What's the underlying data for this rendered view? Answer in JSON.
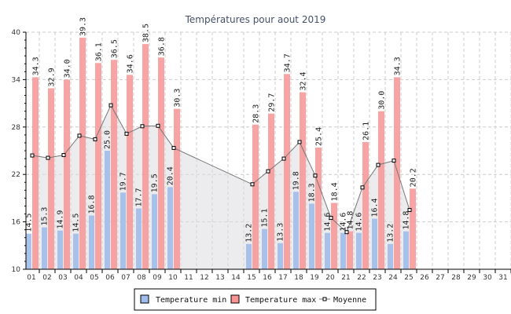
{
  "chart_data": {
    "type": "bar",
    "title": "Températures pour aout 2019",
    "categories": [
      "01",
      "02",
      "03",
      "04",
      "05",
      "06",
      "07",
      "08",
      "09",
      "10",
      "11",
      "12",
      "13",
      "14",
      "15",
      "16",
      "17",
      "18",
      "19",
      "20",
      "21",
      "22",
      "23",
      "24",
      "25",
      "26",
      "27",
      "28",
      "29",
      "30",
      "31"
    ],
    "ylim": [
      10,
      40
    ],
    "yticks": [
      10,
      16,
      22,
      28,
      34,
      40
    ],
    "grid": true,
    "legend_placement": "bottom",
    "series": [
      {
        "name": "Temperature min",
        "type": "bar",
        "color": "#a0bcea",
        "values": [
          14.5,
          15.3,
          14.9,
          14.5,
          16.8,
          25.0,
          19.7,
          17.7,
          19.5,
          20.4,
          null,
          null,
          null,
          null,
          13.2,
          15.1,
          13.3,
          19.8,
          18.3,
          14.6,
          14.6,
          14.6,
          16.4,
          13.2,
          14.8,
          null,
          null,
          null,
          null,
          null,
          null
        ]
      },
      {
        "name": "Temperature max",
        "type": "bar",
        "color": "#f89494",
        "values": [
          34.3,
          32.9,
          34.0,
          39.3,
          36.1,
          36.5,
          34.6,
          38.5,
          36.8,
          30.3,
          null,
          null,
          null,
          null,
          28.3,
          29.7,
          34.7,
          32.4,
          25.4,
          18.4,
          14.8,
          26.1,
          30.0,
          34.3,
          20.2,
          null,
          null,
          null,
          null,
          null,
          null
        ]
      },
      {
        "name": "Moyenne",
        "type": "line",
        "color": "#777777",
        "values": [
          24.4,
          24.1,
          24.45,
          26.9,
          26.45,
          30.75,
          27.15,
          28.1,
          28.15,
          25.35,
          null,
          null,
          null,
          null,
          20.75,
          22.4,
          24.0,
          26.1,
          21.85,
          16.5,
          14.7,
          20.35,
          23.2,
          23.75,
          17.5,
          null,
          null,
          null,
          null,
          null,
          null
        ]
      }
    ]
  }
}
